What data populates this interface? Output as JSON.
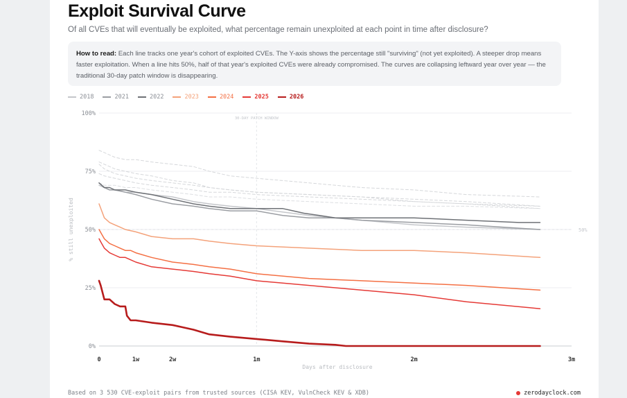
{
  "page": {
    "title": "Exploit Survival Curve",
    "subtitle": "Of all CVEs that will eventually be exploited, what percentage remain unexploited at each point in time after disclosure?",
    "howto_label": "How to read:",
    "howto_text": "Each line tracks one year's cohort of exploited CVEs. The Y-axis shows the percentage still \"surviving\" (not yet exploited). A steeper drop means faster exploitation. When a line hits 50%, half of that year's exploited CVEs were already compromised. The curves are collapsing leftward year over year — the traditional 30-day patch window is disappearing.",
    "footer": "Based on 3 530 CVE-exploit pairs from trusted sources (CISA KEV, VulnCheck KEV & XDB)",
    "brand": "zerodayclock.com"
  },
  "colors": {
    "accent": "#e53935",
    "grid": "#eceef0",
    "axis": "#c9ccd0"
  },
  "chart_data": {
    "type": "line",
    "title": "Exploit Survival Curve",
    "xlabel": "Days after disclosure",
    "ylabel": "% still unexploited",
    "xlim": [
      0,
      90
    ],
    "ylim": [
      0,
      100
    ],
    "y_ticks": [
      {
        "value": 0,
        "label": "0%"
      },
      {
        "value": 25,
        "label": "25%"
      },
      {
        "value": 50,
        "label": "50%"
      },
      {
        "value": 75,
        "label": "75%"
      },
      {
        "value": 100,
        "label": "100%"
      }
    ],
    "x_ticks": [
      {
        "value": 0,
        "label": "0"
      },
      {
        "value": 7,
        "label": "1w"
      },
      {
        "value": 14,
        "label": "2w"
      },
      {
        "value": 30,
        "label": "1m"
      },
      {
        "value": 60,
        "label": "2m"
      },
      {
        "value": 90,
        "label": "3m"
      }
    ],
    "annotations": [
      {
        "type": "vline",
        "x": 30,
        "label": "30-DAY PATCH WINDOW"
      },
      {
        "type": "hline",
        "y": 50,
        "label": "50%"
      }
    ],
    "grid": true,
    "legend_position": "top-left",
    "series": [
      {
        "name": "2018",
        "color": "#c4c6ca",
        "dash": "solid",
        "legend": true,
        "x": [
          0,
          1,
          2,
          3,
          5,
          7,
          10,
          14,
          18,
          21,
          25,
          30,
          40,
          50,
          60,
          70,
          84
        ],
        "y": [
          69,
          68,
          67,
          67,
          66,
          66,
          65,
          64,
          62,
          61,
          60,
          59,
          56,
          54,
          52,
          51,
          50
        ]
      },
      {
        "name": "2021",
        "color": "#9a9da2",
        "dash": "solid",
        "legend": true,
        "x": [
          0,
          1,
          2,
          3,
          5,
          7,
          10,
          14,
          18,
          21,
          25,
          30,
          35,
          40,
          45,
          50,
          60,
          70,
          84
        ],
        "y": [
          70,
          68,
          67,
          67,
          66,
          65,
          63,
          61,
          60,
          59,
          58,
          58,
          56,
          55,
          55,
          54,
          53,
          52,
          50
        ]
      },
      {
        "name": "2022",
        "color": "#6e7176",
        "dash": "solid",
        "legend": true,
        "x": [
          0,
          1,
          2,
          3,
          5,
          7,
          10,
          14,
          18,
          21,
          25,
          30,
          35,
          37,
          39,
          42,
          45,
          50,
          60,
          70,
          80,
          84
        ],
        "y": [
          70,
          68,
          68,
          67,
          67,
          66,
          65,
          63,
          61,
          60,
          59,
          59,
          59,
          58,
          57,
          56,
          55,
          55,
          55,
          54,
          53,
          53
        ]
      },
      {
        "name": "2023",
        "color": "#f4a27a",
        "dash": "solid",
        "legend": true,
        "x": [
          0,
          0.5,
          1,
          2,
          3,
          4,
          5,
          7,
          10,
          14,
          18,
          21,
          25,
          30,
          40,
          50,
          60,
          70,
          84
        ],
        "y": [
          61,
          58,
          55,
          53,
          52,
          51,
          50,
          49,
          47,
          46,
          46,
          45,
          44,
          43,
          42,
          41,
          41,
          40,
          38
        ]
      },
      {
        "name": "2024",
        "color": "#f46f43",
        "dash": "solid",
        "legend": true,
        "x": [
          0,
          0.5,
          1,
          2,
          3,
          4,
          5,
          6,
          7,
          10,
          14,
          18,
          21,
          25,
          30,
          40,
          50,
          60,
          70,
          84
        ],
        "y": [
          50,
          48,
          46,
          44,
          43,
          42,
          41,
          41,
          40,
          38,
          36,
          35,
          34,
          33,
          31,
          29,
          28,
          27,
          26,
          24
        ]
      },
      {
        "name": "2025",
        "color": "#e53935",
        "dash": "solid",
        "legend": true,
        "x": [
          0,
          0.5,
          1,
          2,
          3,
          4,
          5,
          6,
          7,
          10,
          14,
          18,
          21,
          25,
          30,
          35,
          40,
          50,
          60,
          70,
          84
        ],
        "y": [
          46,
          44,
          42,
          40,
          39,
          38,
          38,
          37,
          36,
          34,
          33,
          32,
          31,
          30,
          28,
          27,
          26,
          24,
          22,
          19,
          16
        ]
      },
      {
        "name": "2026",
        "color": "#b71c1c",
        "dash": "solid",
        "legend": true,
        "x": [
          0,
          0.3,
          1,
          2,
          3,
          4,
          5,
          5.3,
          6,
          7,
          10,
          14,
          16,
          18,
          21,
          25,
          30,
          35,
          40,
          45,
          47,
          50,
          60,
          70,
          84
        ],
        "y": [
          28,
          26,
          20,
          20,
          18,
          17,
          17,
          13,
          11,
          11,
          10,
          9,
          8,
          7,
          5,
          4,
          3,
          2,
          1,
          0.5,
          0,
          0,
          0,
          0,
          0
        ]
      },
      {
        "name": "",
        "color": "#d5d7da",
        "dash": "dashed",
        "legend": false,
        "x": [
          0,
          1,
          3,
          5,
          7,
          10,
          14,
          18,
          21,
          25,
          30,
          40,
          50,
          60,
          70,
          84
        ],
        "y": [
          84,
          83,
          81,
          80,
          80,
          79,
          78,
          77,
          75,
          73,
          72,
          70,
          68,
          67,
          65,
          64
        ]
      },
      {
        "name": "",
        "color": "#d5d7da",
        "dash": "dashed",
        "legend": false,
        "x": [
          0,
          1,
          3,
          5,
          7,
          10,
          14,
          18,
          21,
          25,
          30,
          40,
          50,
          60,
          70,
          84
        ],
        "y": [
          79,
          78,
          76,
          75,
          74,
          73,
          71,
          70,
          68,
          67,
          66,
          65,
          64,
          63,
          62,
          60
        ]
      },
      {
        "name": "",
        "color": "#d5d7da",
        "dash": "dashed",
        "legend": false,
        "x": [
          0,
          1,
          3,
          5,
          7,
          10,
          14,
          18,
          21,
          25,
          30,
          40,
          50,
          60,
          70,
          84
        ],
        "y": [
          78,
          76,
          74,
          73,
          72,
          71,
          70,
          69,
          68,
          67,
          66,
          65,
          64,
          62,
          61,
          59
        ]
      },
      {
        "name": "",
        "color": "#d5d7da",
        "dash": "dashed",
        "legend": false,
        "x": [
          0,
          1,
          3,
          5,
          7,
          10,
          14,
          18,
          21,
          25,
          30,
          40,
          50,
          60,
          70,
          84
        ],
        "y": [
          74,
          73,
          72,
          71,
          70,
          69,
          68,
          67,
          66,
          66,
          65,
          64,
          63,
          62,
          61,
          60
        ]
      },
      {
        "name": "",
        "color": "#dcdee1",
        "dash": "dashed",
        "legend": false,
        "x": [
          0,
          1,
          3,
          5,
          7,
          10,
          14,
          18,
          21,
          25,
          30,
          40,
          50,
          60,
          70,
          84
        ],
        "y": [
          70,
          69,
          69,
          68,
          68,
          67,
          66,
          65,
          64,
          64,
          63,
          62,
          61,
          60,
          60,
          59
        ]
      }
    ]
  }
}
